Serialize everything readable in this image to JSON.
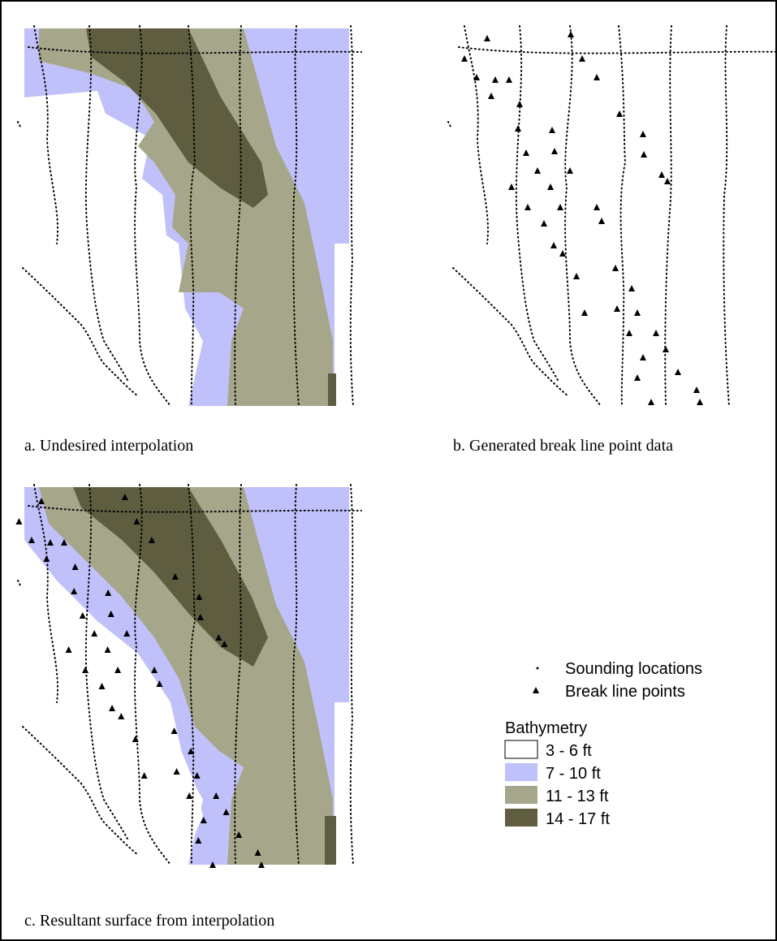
{
  "panels": [
    {
      "caption": "a.  Undesired interpolation"
    },
    {
      "caption": "b.  Generated break line point data"
    },
    {
      "caption": "c.  Resultant surface from interpolation"
    }
  ],
  "legend": {
    "symbols": [
      {
        "label": "Sounding locations"
      },
      {
        "label": "Break line points"
      }
    ],
    "title": "Bathymetry",
    "classes": [
      {
        "label": "3 - 6 ft",
        "color": "#ffffff"
      },
      {
        "label": "7 - 10 ft",
        "color": "#c0c0fa"
      },
      {
        "label": "11 - 13 ft",
        "color": "#a6a68a"
      },
      {
        "label": "14 - 17 ft",
        "color": "#5e5d40"
      }
    ]
  }
}
